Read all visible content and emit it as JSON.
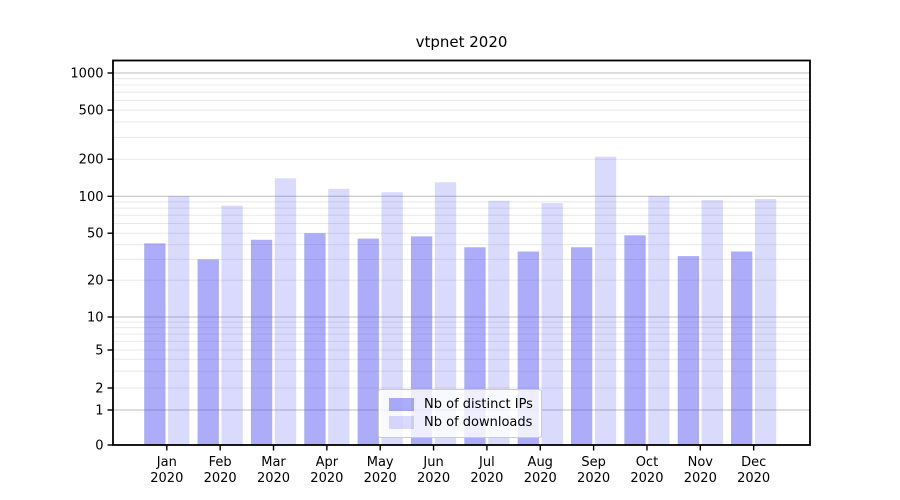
{
  "chart_data": {
    "type": "bar",
    "title": "vtpnet 2020",
    "categories": [
      "Jan 2020",
      "Feb 2020",
      "Mar 2020",
      "Apr 2020",
      "May 2020",
      "Jun 2020",
      "Jul 2020",
      "Aug 2020",
      "Sep 2020",
      "Oct 2020",
      "Nov 2020",
      "Dec 2020"
    ],
    "series": [
      {
        "name": "Nb of distinct IPs",
        "color": "rgba(70,70,240,0.45)",
        "values": [
          41,
          30,
          44,
          50,
          45,
          47,
          38,
          35,
          38,
          48,
          32,
          35
        ]
      },
      {
        "name": "Nb of downloads",
        "color": "rgba(70,70,240,0.20)",
        "values": [
          100,
          84,
          140,
          115,
          108,
          130,
          92,
          88,
          210,
          100,
          93,
          95
        ]
      }
    ],
    "yscale": "symlog",
    "y_ticks": [
      0,
      1,
      2,
      5,
      10,
      20,
      50,
      100,
      200,
      500,
      1000
    ],
    "ylim": [
      0,
      1200
    ],
    "xlabel": "",
    "ylabel": "",
    "grid": true,
    "legend_position": "lower center",
    "colors": {
      "spine": "#000000",
      "grid_major": "#bdbdbd",
      "grid_minor": "#e8e8e8",
      "text": "#000000"
    }
  }
}
